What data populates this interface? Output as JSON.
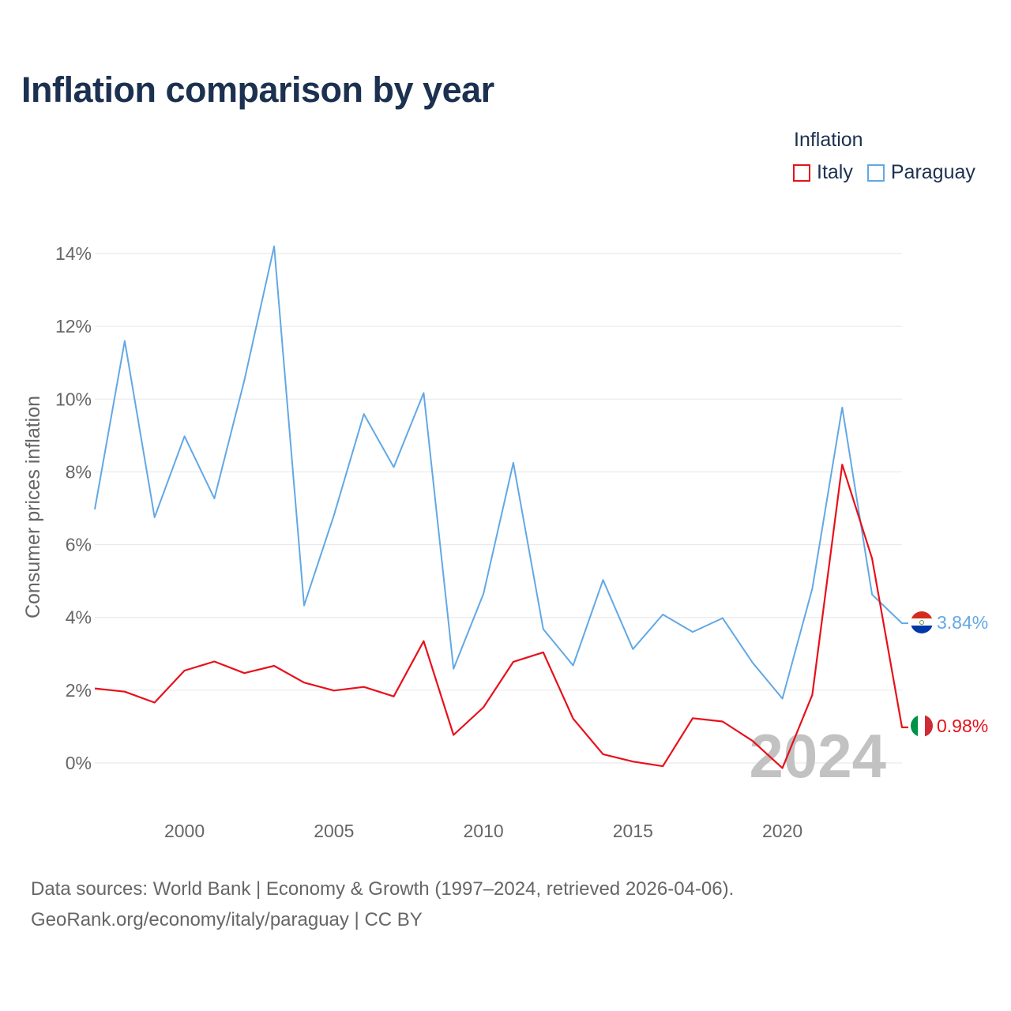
{
  "title": "Inflation comparison by year",
  "legend": {
    "title": "Inflation",
    "items": [
      {
        "label": "Italy",
        "color": "#e8101a"
      },
      {
        "label": "Paraguay",
        "color": "#62a8e5"
      }
    ]
  },
  "year_watermark": "2024",
  "sources": {
    "line1": "Data sources: World Bank | Economy & Growth (1997–2024, retrieved 2026-04-06).",
    "line2": "GeoRank.org/economy/italy/paraguay | CC BY"
  },
  "chart_data": {
    "type": "line",
    "ylabel": "Consumer prices inflation",
    "xlabel": "",
    "xlim": [
      1997,
      2024
    ],
    "ylim": [
      -1.5,
      14.5
    ],
    "yticks": [
      0,
      2,
      4,
      6,
      8,
      10,
      12,
      14
    ],
    "ytick_labels": [
      "0%",
      "2%",
      "4%",
      "6%",
      "8%",
      "10%",
      "12%",
      "14%"
    ],
    "xticks": [
      2000,
      2005,
      2010,
      2015,
      2020
    ],
    "xtick_labels": [
      "2000",
      "2005",
      "2010",
      "2015",
      "2020"
    ],
    "grid": true,
    "x": [
      1997,
      1998,
      1999,
      2000,
      2001,
      2002,
      2003,
      2004,
      2005,
      2006,
      2007,
      2008,
      2009,
      2010,
      2011,
      2012,
      2013,
      2014,
      2015,
      2016,
      2017,
      2018,
      2019,
      2020,
      2021,
      2022,
      2023,
      2024
    ],
    "series": [
      {
        "name": "Italy",
        "color": "#e8101a",
        "values": [
          2.05,
          1.96,
          1.66,
          2.54,
          2.79,
          2.47,
          2.67,
          2.21,
          1.99,
          2.09,
          1.83,
          3.35,
          0.77,
          1.53,
          2.78,
          3.04,
          1.22,
          0.24,
          0.04,
          -0.09,
          1.23,
          1.14,
          0.61,
          -0.14,
          1.87,
          8.2,
          5.62,
          0.98
        ],
        "end_label": "0.98%"
      },
      {
        "name": "Paraguay",
        "color": "#62a8e5",
        "values": [
          6.97,
          11.6,
          6.75,
          8.98,
          7.27,
          10.51,
          14.2,
          4.33,
          6.81,
          9.59,
          8.13,
          10.17,
          2.59,
          4.65,
          8.25,
          3.68,
          2.68,
          5.03,
          3.13,
          4.08,
          3.6,
          3.98,
          2.76,
          1.77,
          4.79,
          9.77,
          4.63,
          3.84
        ],
        "end_label": "3.84%"
      }
    ]
  }
}
